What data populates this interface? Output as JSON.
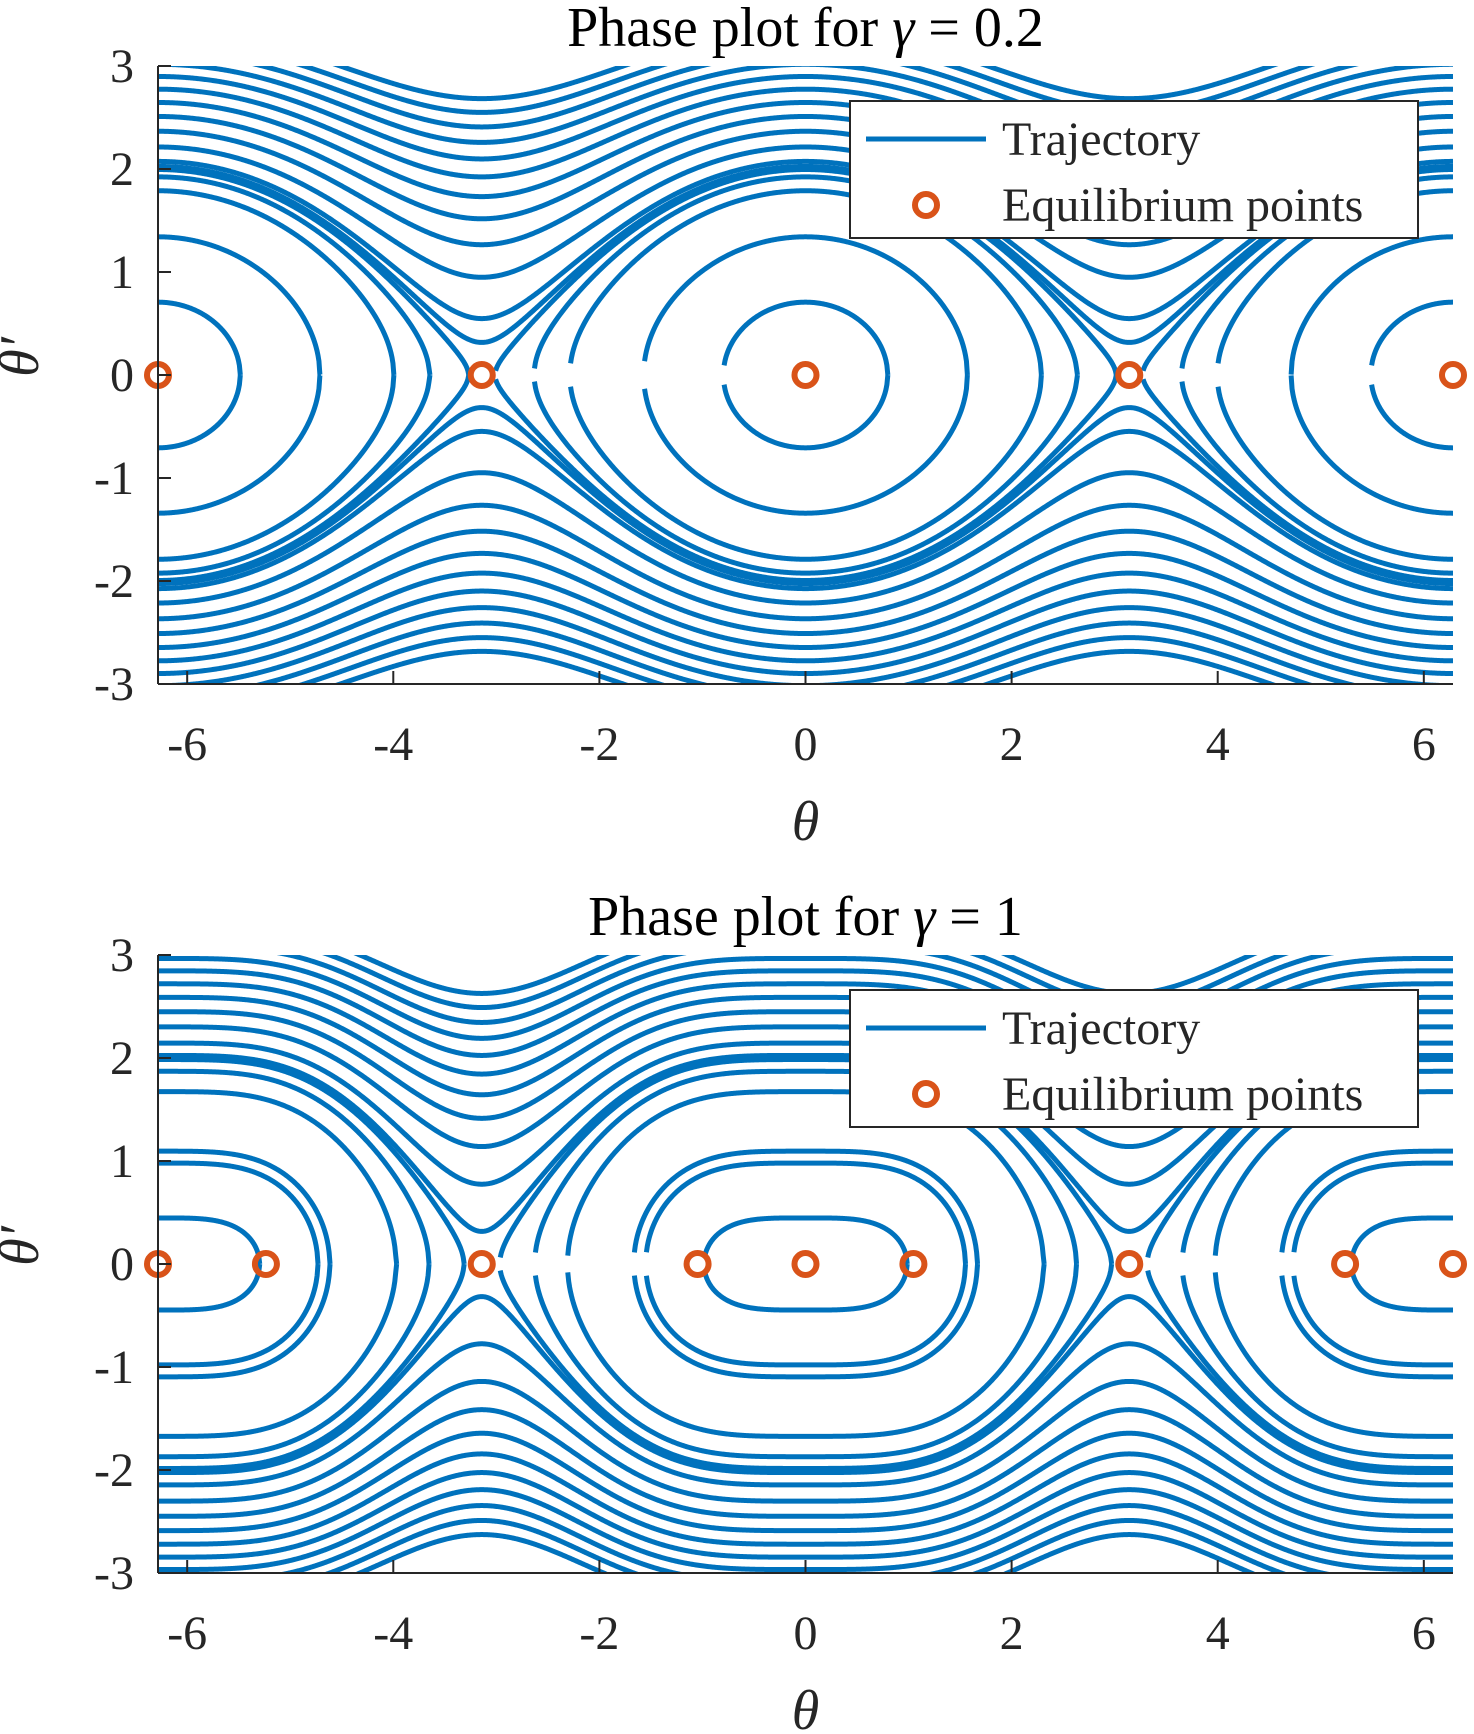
{
  "chart_data": [
    {
      "type": "line",
      "title_prefix": "Phase plot for ",
      "title_symbol": "γ",
      "title_suffix": " = 0.2",
      "xlabel": "θ",
      "ylabel": "θ′",
      "gamma": 0.2,
      "xlim": [
        -6.2832,
        6.2832
      ],
      "ylim": [
        -3,
        3
      ],
      "xticks": [
        -6,
        -4,
        -2,
        0,
        2,
        4,
        6
      ],
      "xtick_labels": [
        "-6",
        "-4",
        "-2",
        "0",
        "2",
        "4",
        "6"
      ],
      "yticks": [
        3,
        2,
        1,
        0,
        -1,
        -2,
        -3
      ],
      "ytick_labels": [
        "3",
        "2",
        "1",
        "0",
        "-1",
        "-2",
        "-3"
      ],
      "energy_levels": [
        0.25,
        0.9,
        1.6,
        1.85,
        1.99,
        2.05,
        2.15,
        2.45,
        2.8,
        3.15,
        3.5,
        3.85,
        4.2,
        4.55,
        4.9,
        5.25,
        5.6
      ],
      "series": [
        {
          "name": "Trajectory",
          "color": "#0072BD"
        }
      ],
      "equilibrium_points": [
        {
          "x": -6.2832,
          "y": 0
        },
        {
          "x": -3.1416,
          "y": 0
        },
        {
          "x": 0,
          "y": 0
        },
        {
          "x": 3.1416,
          "y": 0
        },
        {
          "x": 6.2832,
          "y": 0
        }
      ],
      "legend": {
        "placement": "top-right",
        "entries": [
          "Trajectory",
          "Equilibrium points"
        ],
        "line_color": "#0072BD",
        "marker_color": "#D95319"
      }
    },
    {
      "type": "line",
      "title_prefix": "Phase plot for ",
      "title_symbol": "γ",
      "title_suffix": " = 1",
      "xlabel": "θ",
      "ylabel": "θ′",
      "gamma": 1,
      "xlim": [
        -6.2832,
        6.2832
      ],
      "ylim": [
        -3,
        3
      ],
      "xticks": [
        -6,
        -4,
        -2,
        0,
        2,
        4,
        6
      ],
      "xtick_labels": [
        "-6",
        "-4",
        "-2",
        "0",
        "2",
        "4",
        "6"
      ],
      "yticks": [
        3,
        2,
        1,
        0,
        -1,
        -2,
        -3
      ],
      "ytick_labels": [
        "3",
        "2",
        "1",
        "0",
        "-1",
        "-2",
        "-3"
      ],
      "energy_levels": [
        -0.2,
        0.1,
        0.48,
        0.6,
        1.4,
        1.75,
        1.97,
        2.05,
        2.3,
        2.65,
        3.0,
        3.35,
        3.7,
        4.05,
        4.4,
        4.75,
        5.1,
        5.45
      ],
      "series": [
        {
          "name": "Trajectory",
          "color": "#0072BD"
        }
      ],
      "equilibrium_points": [
        {
          "x": -6.2832,
          "y": 0
        },
        {
          "x": -5.236,
          "y": 0
        },
        {
          "x": -3.1416,
          "y": 0
        },
        {
          "x": -1.0472,
          "y": 0
        },
        {
          "x": 0,
          "y": 0
        },
        {
          "x": 1.0472,
          "y": 0
        },
        {
          "x": 3.1416,
          "y": 0
        },
        {
          "x": 5.236,
          "y": 0
        },
        {
          "x": 6.2832,
          "y": 0
        }
      ],
      "legend": {
        "placement": "top-right",
        "entries": [
          "Trajectory",
          "Equilibrium points"
        ],
        "line_color": "#0072BD",
        "marker_color": "#D95319"
      }
    }
  ]
}
